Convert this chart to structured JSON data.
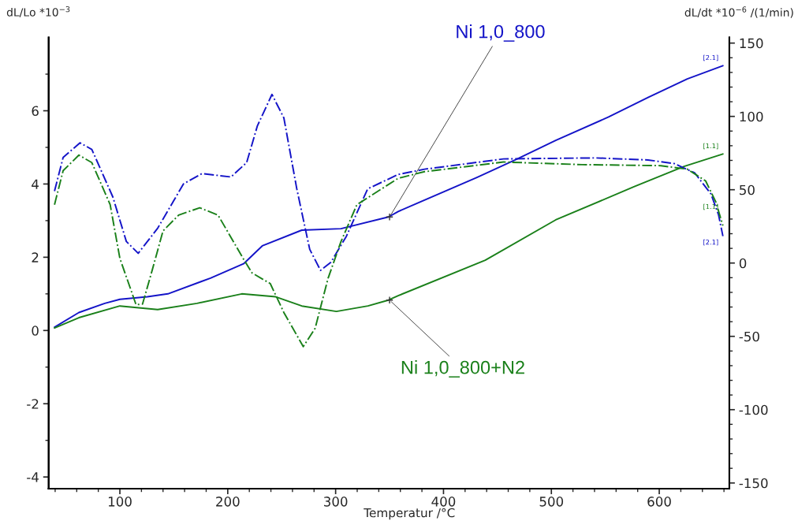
{
  "chart_data": {
    "type": "line",
    "xlabel": "Temperatur /°C",
    "ylabel": "dL/Lo *10$^{−3}$",
    "y2label": "dL/dt *10$^{−6}$ /(1/min)",
    "xlim": [
      34,
      665
    ],
    "ylim": [
      -4.32,
      8
    ],
    "y2lim": [
      -153.9,
      153.8
    ],
    "xticks": [
      100,
      200,
      300,
      400,
      500,
      600,
      {
        "value": 40,
        "label": null
      },
      {
        "value": 60,
        "label": null
      },
      {
        "value": 80,
        "label": null
      },
      {
        "value": 120,
        "label": null
      },
      {
        "value": 140,
        "label": null
      },
      {
        "value": 160,
        "label": null
      },
      {
        "value": 180,
        "label": null
      },
      {
        "value": 220,
        "label": null
      },
      {
        "value": 240,
        "label": null
      },
      {
        "value": 260,
        "label": null
      },
      {
        "value": 280,
        "label": null
      },
      {
        "value": 320,
        "label": null
      },
      {
        "value": 340,
        "label": null
      },
      {
        "value": 360,
        "label": null
      },
      {
        "value": 380,
        "label": null
      },
      {
        "value": 420,
        "label": null
      },
      {
        "value": 440,
        "label": null
      },
      {
        "value": 460,
        "label": null
      },
      {
        "value": 480,
        "label": null
      },
      {
        "value": 520,
        "label": null
      },
      {
        "value": 540,
        "label": null
      },
      {
        "value": 560,
        "label": null
      },
      {
        "value": 580,
        "label": null
      },
      {
        "value": 620,
        "label": null
      },
      {
        "value": 640,
        "label": null
      },
      {
        "value": 660,
        "label": null
      }
    ],
    "yticks": [
      -4,
      -2,
      0,
      2,
      4,
      6,
      {
        "value": -3,
        "label": null
      },
      {
        "value": -1,
        "label": null
      },
      {
        "value": 1,
        "label": null
      },
      {
        "value": 3,
        "label": null
      },
      {
        "value": 5,
        "label": null
      },
      {
        "value": 7,
        "label": null
      }
    ],
    "y2ticks": [
      -150,
      -100,
      -50,
      0,
      50,
      100,
      150,
      {
        "value": -140,
        "label": null
      },
      {
        "value": -130,
        "label": null
      },
      {
        "value": -120,
        "label": null
      },
      {
        "value": -110,
        "label": null
      },
      {
        "value": -90,
        "label": null
      },
      {
        "value": -80,
        "label": null
      },
      {
        "value": -70,
        "label": null
      },
      {
        "value": -60,
        "label": null
      },
      {
        "value": -40,
        "label": null
      },
      {
        "value": -30,
        "label": null
      },
      {
        "value": -20,
        "label": null
      },
      {
        "value": -10,
        "label": null
      },
      {
        "value": 10,
        "label": null
      },
      {
        "value": 20,
        "label": null
      },
      {
        "value": 30,
        "label": null
      },
      {
        "value": 40,
        "label": null
      },
      {
        "value": 60,
        "label": null
      },
      {
        "value": 70,
        "label": null
      },
      {
        "value": 80,
        "label": null
      },
      {
        "value": 90,
        "label": null
      },
      {
        "value": 110,
        "label": null
      },
      {
        "value": 120,
        "label": null
      },
      {
        "value": 130,
        "label": null
      },
      {
        "value": 140,
        "label": null
      }
    ],
    "grid": false,
    "legend": false,
    "series": [
      {
        "name": "[2.1]",
        "color": "#1414c8",
        "line_style": "solid",
        "x": [
          39.4,
          62,
          86,
          100,
          125.5,
          144.5,
          184,
          215,
          232,
          268.6,
          305,
          349,
          358,
          431,
          468,
          504,
          553,
          590,
          626,
          659
        ],
        "values": [
          0.09,
          0.49,
          0.74,
          0.85,
          0.92,
          1.0,
          1.43,
          1.83,
          2.31,
          2.74,
          2.78,
          3.1,
          3.25,
          4.18,
          4.68,
          5.19,
          5.83,
          6.37,
          6.87,
          7.23
        ]
      },
      {
        "name": "[1.1]",
        "color": "#1a801a",
        "line_style": "solid",
        "x": [
          39.4,
          62,
          100,
          135,
          171.5,
          213,
          244.5,
          268.6,
          300.7,
          330,
          349,
          358,
          438.7,
          504,
          577,
          623,
          659
        ],
        "values": [
          0.07,
          0.35,
          0.67,
          0.57,
          0.74,
          1.0,
          0.92,
          0.67,
          0.52,
          0.67,
          0.83,
          0.95,
          1.92,
          3.02,
          3.93,
          4.48,
          4.82
        ]
      },
      {
        "name": "[2.1]",
        "color": "#1414c8",
        "line_style": "dashdot",
        "axis": "y2",
        "x": [
          39.4,
          47.4,
          63,
          74,
          93.5,
          106,
          117,
          135,
          159,
          176,
          203,
          217.5,
          227.5,
          241,
          252,
          264,
          276,
          286,
          295.6,
          310,
          329.7,
          358,
          382.5,
          455.5,
          541,
          589.5,
          614,
          633,
          648,
          655,
          659
        ],
        "values": [
          49,
          72,
          82,
          77.5,
          45,
          14.7,
          6.6,
          23.7,
          54,
          61,
          58.7,
          68.5,
          93.6,
          115,
          99,
          50.6,
          9.3,
          -5,
          0.5,
          18.3,
          50.6,
          60.4,
          64,
          71,
          71.7,
          70.3,
          67.8,
          61.4,
          47,
          32.8,
          18.3
        ]
      },
      {
        "name": "[1.1]",
        "color": "#1a801a",
        "line_style": "dashdot",
        "axis": "y2",
        "x": [
          39.4,
          47.4,
          62,
          74,
          91,
          100,
          115,
          121,
          130,
          140,
          154.5,
          174,
          191,
          215,
          222.6,
          239.4,
          252,
          270,
          281,
          293,
          305,
          319.7,
          358,
          382.5,
          455.5,
          528.5,
          601.5,
          626,
          643,
          652.5,
          659
        ],
        "values": [
          39.8,
          63,
          73.6,
          68.5,
          39.8,
          3.2,
          -28.4,
          -28,
          -4.8,
          21.9,
          32.7,
          37.7,
          32.7,
          2.2,
          -6.8,
          -14,
          -33.7,
          -57,
          -44.5,
          -10.4,
          14.7,
          39.8,
          57.8,
          62.3,
          68.9,
          67.1,
          66.4,
          64,
          56,
          41.6,
          25.5
        ]
      }
    ],
    "annotations": [
      {
        "text": "Ni 1,0_800",
        "x": 350,
        "y": 3.1
      },
      {
        "text": "Ni 1,0_800+N2",
        "x": 350,
        "y": 0.83
      }
    ]
  }
}
